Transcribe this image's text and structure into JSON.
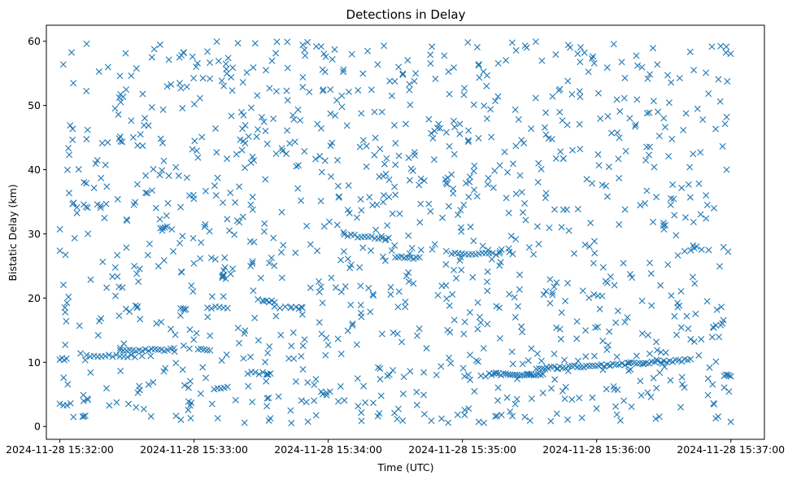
{
  "chart_data": {
    "type": "scatter",
    "title": "Detections in Delay",
    "xlabel": "Time (UTC)",
    "ylabel": "Bistatic Delay (km)",
    "marker": "x",
    "color": "#1f77b4",
    "xlim": [
      -0.1,
      5.25
    ],
    "ylim": [
      -2,
      62.5
    ],
    "x_unit": "minutes since 2024-11-28 15:32:00",
    "x_ticks": [
      {
        "value": 0,
        "label": "2024-11-28 15:32:00"
      },
      {
        "value": 1,
        "label": "2024-11-28 15:33:00"
      },
      {
        "value": 2,
        "label": "2024-11-28 15:34:00"
      },
      {
        "value": 3,
        "label": "2024-11-28 15:35:00"
      },
      {
        "value": 4,
        "label": "2024-11-28 15:36:00"
      },
      {
        "value": 5,
        "label": "2024-11-28 15:37:00"
      }
    ],
    "y_ticks": [
      {
        "value": 0,
        "label": "0"
      },
      {
        "value": 10,
        "label": "10"
      },
      {
        "value": 20,
        "label": "20"
      },
      {
        "value": 30,
        "label": "30"
      },
      {
        "value": 40,
        "label": "40"
      },
      {
        "value": 50,
        "label": "50"
      },
      {
        "value": 60,
        "label": "60"
      }
    ],
    "tracks": [
      {
        "x_start": 0.0,
        "x_end": 0.05,
        "y_start": 10.5,
        "y_end": 10.5,
        "count": 4
      },
      {
        "x_start": 0.0,
        "x_end": 0.08,
        "y_start": 3.5,
        "y_end": 3.5,
        "count": 4
      },
      {
        "x_start": 0.17,
        "x_end": 0.19,
        "y_start": 1.6,
        "y_end": 1.6,
        "count": 3
      },
      {
        "x_start": 0.2,
        "x_end": 0.56,
        "y_start": 11.0,
        "y_end": 11.0,
        "count": 14
      },
      {
        "x_start": 0.45,
        "x_end": 0.85,
        "y_start": 11.8,
        "y_end": 12.0,
        "count": 18
      },
      {
        "x_start": 0.75,
        "x_end": 0.8,
        "y_start": 31.0,
        "y_end": 31.0,
        "count": 4
      },
      {
        "x_start": 0.9,
        "x_end": 0.94,
        "y_start": 18.3,
        "y_end": 18.3,
        "count": 3
      },
      {
        "x_start": 1.03,
        "x_end": 1.12,
        "y_start": 12.0,
        "y_end": 12.0,
        "count": 5
      },
      {
        "x_start": 1.1,
        "x_end": 1.25,
        "y_start": 18.5,
        "y_end": 18.5,
        "count": 6
      },
      {
        "x_start": 1.15,
        "x_end": 1.25,
        "y_start": 6.0,
        "y_end": 6.0,
        "count": 5
      },
      {
        "x_start": 1.4,
        "x_end": 1.57,
        "y_start": 8.3,
        "y_end": 8.3,
        "count": 7
      },
      {
        "x_start": 1.52,
        "x_end": 1.6,
        "y_start": 19.5,
        "y_end": 19.5,
        "count": 5
      },
      {
        "x_start": 1.6,
        "x_end": 1.8,
        "y_start": 18.5,
        "y_end": 18.5,
        "count": 6
      },
      {
        "x_start": 2.12,
        "x_end": 2.45,
        "y_start": 29.8,
        "y_end": 29.2,
        "count": 14
      },
      {
        "x_start": 2.5,
        "x_end": 2.68,
        "y_start": 26.3,
        "y_end": 26.3,
        "count": 9
      },
      {
        "x_start": 2.92,
        "x_end": 3.25,
        "y_start": 26.9,
        "y_end": 26.9,
        "count": 14
      },
      {
        "x_start": 3.2,
        "x_end": 3.6,
        "y_start": 8.1,
        "y_end": 8.1,
        "count": 24
      },
      {
        "x_start": 3.55,
        "x_end": 4.1,
        "y_start": 9.0,
        "y_end": 9.6,
        "count": 26
      },
      {
        "x_start": 4.1,
        "x_end": 4.7,
        "y_start": 9.6,
        "y_end": 10.4,
        "count": 28
      },
      {
        "x_start": 3.98,
        "x_end": 4.04,
        "y_start": 20.5,
        "y_end": 20.5,
        "count": 3
      },
      {
        "x_start": 4.95,
        "x_end": 5.0,
        "y_start": 8.0,
        "y_end": 8.0,
        "count": 5
      }
    ],
    "clutter": {
      "count": 1150,
      "x_range": [
        0.0,
        5.0
      ],
      "y_range": [
        0.5,
        60.0
      ],
      "distribution": "uniform",
      "seed": 12345
    }
  }
}
